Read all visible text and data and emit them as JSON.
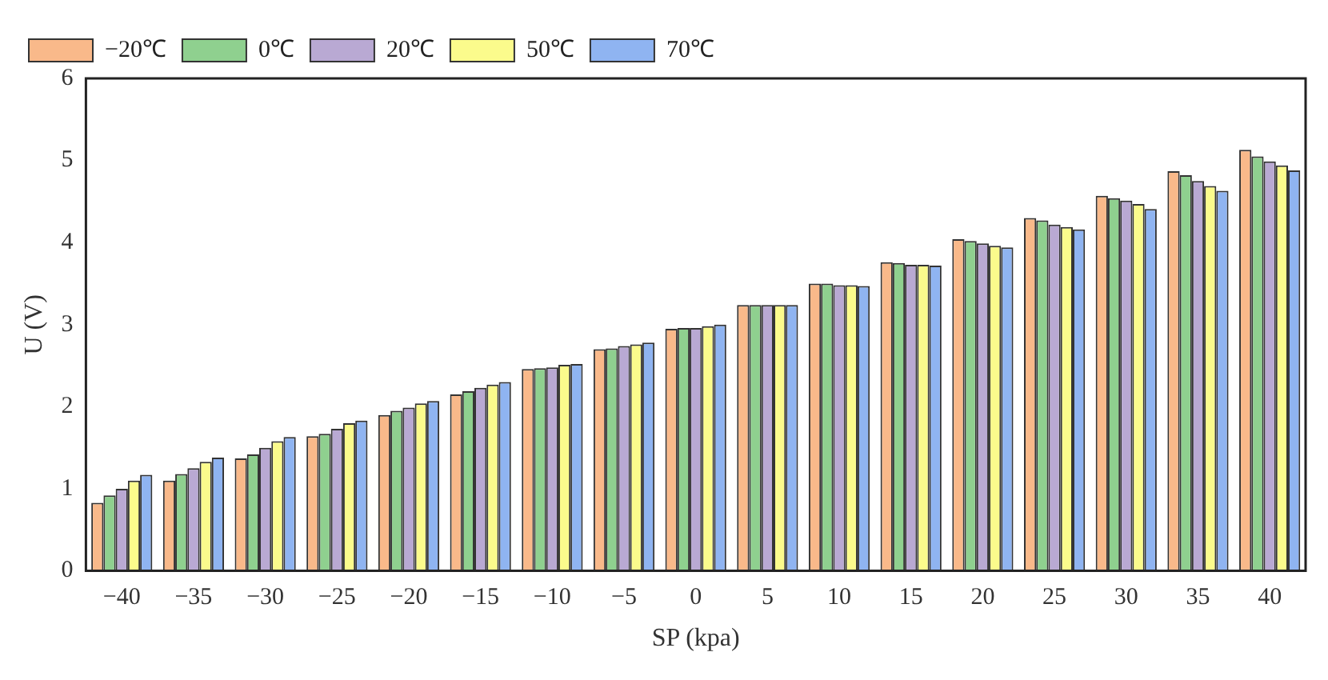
{
  "chart_data": {
    "type": "bar",
    "xlabel": "SP (kpa)",
    "ylabel": "U (V)",
    "categories": [
      "−40",
      "−35",
      "−30",
      "−25",
      "−20",
      "−15",
      "−10",
      "−5",
      "0",
      "5",
      "10",
      "15",
      "20",
      "25",
      "30",
      "35",
      "40"
    ],
    "series": [
      {
        "name": "−20℃",
        "color": "#f9b98a",
        "values": [
          0.83,
          1.1,
          1.37,
          1.64,
          1.9,
          2.15,
          2.46,
          2.7,
          2.95,
          3.24,
          3.5,
          3.76,
          4.04,
          4.3,
          4.57,
          4.87,
          5.13
        ]
      },
      {
        "name": "0℃",
        "color": "#8fd08f",
        "values": [
          0.92,
          1.18,
          1.42,
          1.67,
          1.95,
          2.19,
          2.47,
          2.71,
          2.96,
          3.24,
          3.5,
          3.75,
          4.02,
          4.27,
          4.54,
          4.82,
          5.05
        ]
      },
      {
        "name": "20℃",
        "color": "#b9a9d3",
        "values": [
          1.0,
          1.25,
          1.5,
          1.73,
          1.99,
          2.23,
          2.48,
          2.74,
          2.96,
          3.24,
          3.48,
          3.73,
          3.99,
          4.22,
          4.51,
          4.75,
          4.99
        ]
      },
      {
        "name": "50℃",
        "color": "#fbfb8c",
        "values": [
          1.1,
          1.33,
          1.58,
          1.8,
          2.04,
          2.27,
          2.51,
          2.76,
          2.98,
          3.24,
          3.48,
          3.73,
          3.96,
          4.19,
          4.47,
          4.69,
          4.94
        ]
      },
      {
        "name": "70℃",
        "color": "#8fb4f1",
        "values": [
          1.17,
          1.38,
          1.63,
          1.83,
          2.07,
          2.3,
          2.52,
          2.78,
          3.0,
          3.24,
          3.47,
          3.72,
          3.94,
          4.16,
          4.41,
          4.63,
          4.88
        ]
      }
    ],
    "ylim": [
      0,
      6
    ],
    "yticks": [
      0,
      1,
      2,
      3,
      4,
      5,
      6
    ],
    "grid": false,
    "legend": "top left"
  }
}
